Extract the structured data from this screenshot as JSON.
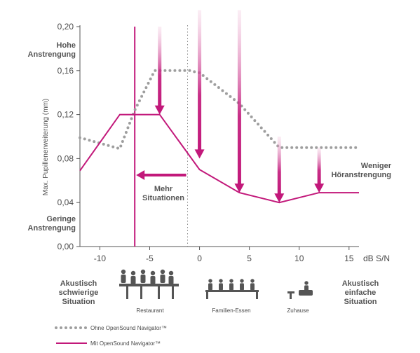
{
  "chart_data": {
    "type": "line",
    "ylabel": "Max. Pupillenerweiterung (mm)",
    "xunit": "dB S/N",
    "xlim": [
      -12,
      16
    ],
    "ylim": [
      0,
      0.2
    ],
    "x_ticks": [
      "-10",
      "-5",
      "0",
      "5",
      "10",
      "15"
    ],
    "y_ticks": [
      "0,00",
      "0,04",
      "0,08",
      "0,12",
      "0,16",
      "0,20"
    ],
    "series": [
      {
        "name": "Ohne OpenSound Navigator™",
        "style": "dotted",
        "color": "#9e9e9e",
        "points": [
          [
            -12,
            0.099
          ],
          [
            -8,
            0.089
          ],
          [
            -6.5,
            0.124
          ],
          [
            -4.5,
            0.16
          ],
          [
            -1,
            0.16
          ],
          [
            0,
            0.158
          ],
          [
            4,
            0.13
          ],
          [
            8,
            0.09
          ],
          [
            12,
            0.09
          ],
          [
            16,
            0.09
          ]
        ]
      },
      {
        "name": "Mit OpenSound Navigator™",
        "style": "solid",
        "color": "#c2187a",
        "points": [
          [
            -12,
            0.069
          ],
          [
            -8,
            0.12
          ],
          [
            -4,
            0.12
          ],
          [
            0,
            0.07
          ],
          [
            4,
            0.049
          ],
          [
            8,
            0.04
          ],
          [
            12,
            0.049
          ],
          [
            16,
            0.049
          ]
        ]
      }
    ],
    "vertical_line_x": -6.5,
    "dotted_divider_x": -1.2,
    "improvement_arrows": [
      {
        "x": -4,
        "from": 0.2,
        "to": 0.12
      },
      {
        "x": 0,
        "from": 0.215,
        "to": 0.08
      },
      {
        "x": 4,
        "from": 0.215,
        "to": 0.049
      },
      {
        "x": 8,
        "from": 0.1,
        "to": 0.04
      },
      {
        "x": 12,
        "from": 0.09,
        "to": 0.049
      }
    ],
    "left_arrow": {
      "y": 0.065,
      "x_from": -1.2,
      "x_to": -6.5
    },
    "annotations": {
      "high_effort": [
        "Hohe",
        "Anstrengung"
      ],
      "low_effort": [
        "Geringe",
        "Anstrengung"
      ],
      "less_listening_effort": [
        "Weniger",
        "Höranstrengung"
      ],
      "more_situations": [
        "Mehr",
        "Situationen"
      ],
      "difficult": [
        "Akustisch",
        "schwierige",
        "Situation"
      ],
      "easy": [
        "Akustisch",
        "einfache",
        "Situation"
      ]
    },
    "scenes": [
      {
        "label": "Restaurant",
        "icon": "restaurant-people-icon"
      },
      {
        "label": "Familien-Essen",
        "icon": "family-dinner-icon"
      },
      {
        "label": "Zuhause",
        "icon": "home-conversation-icon"
      }
    ],
    "legend": [
      "Ohne OpenSound Navigator™",
      "Mit OpenSound Navigator™"
    ]
  },
  "colors": {
    "magenta": "#c2187a",
    "magenta_light": "#f2c6dd",
    "gray_dots": "#9e9e9e",
    "axis": "#555555"
  }
}
